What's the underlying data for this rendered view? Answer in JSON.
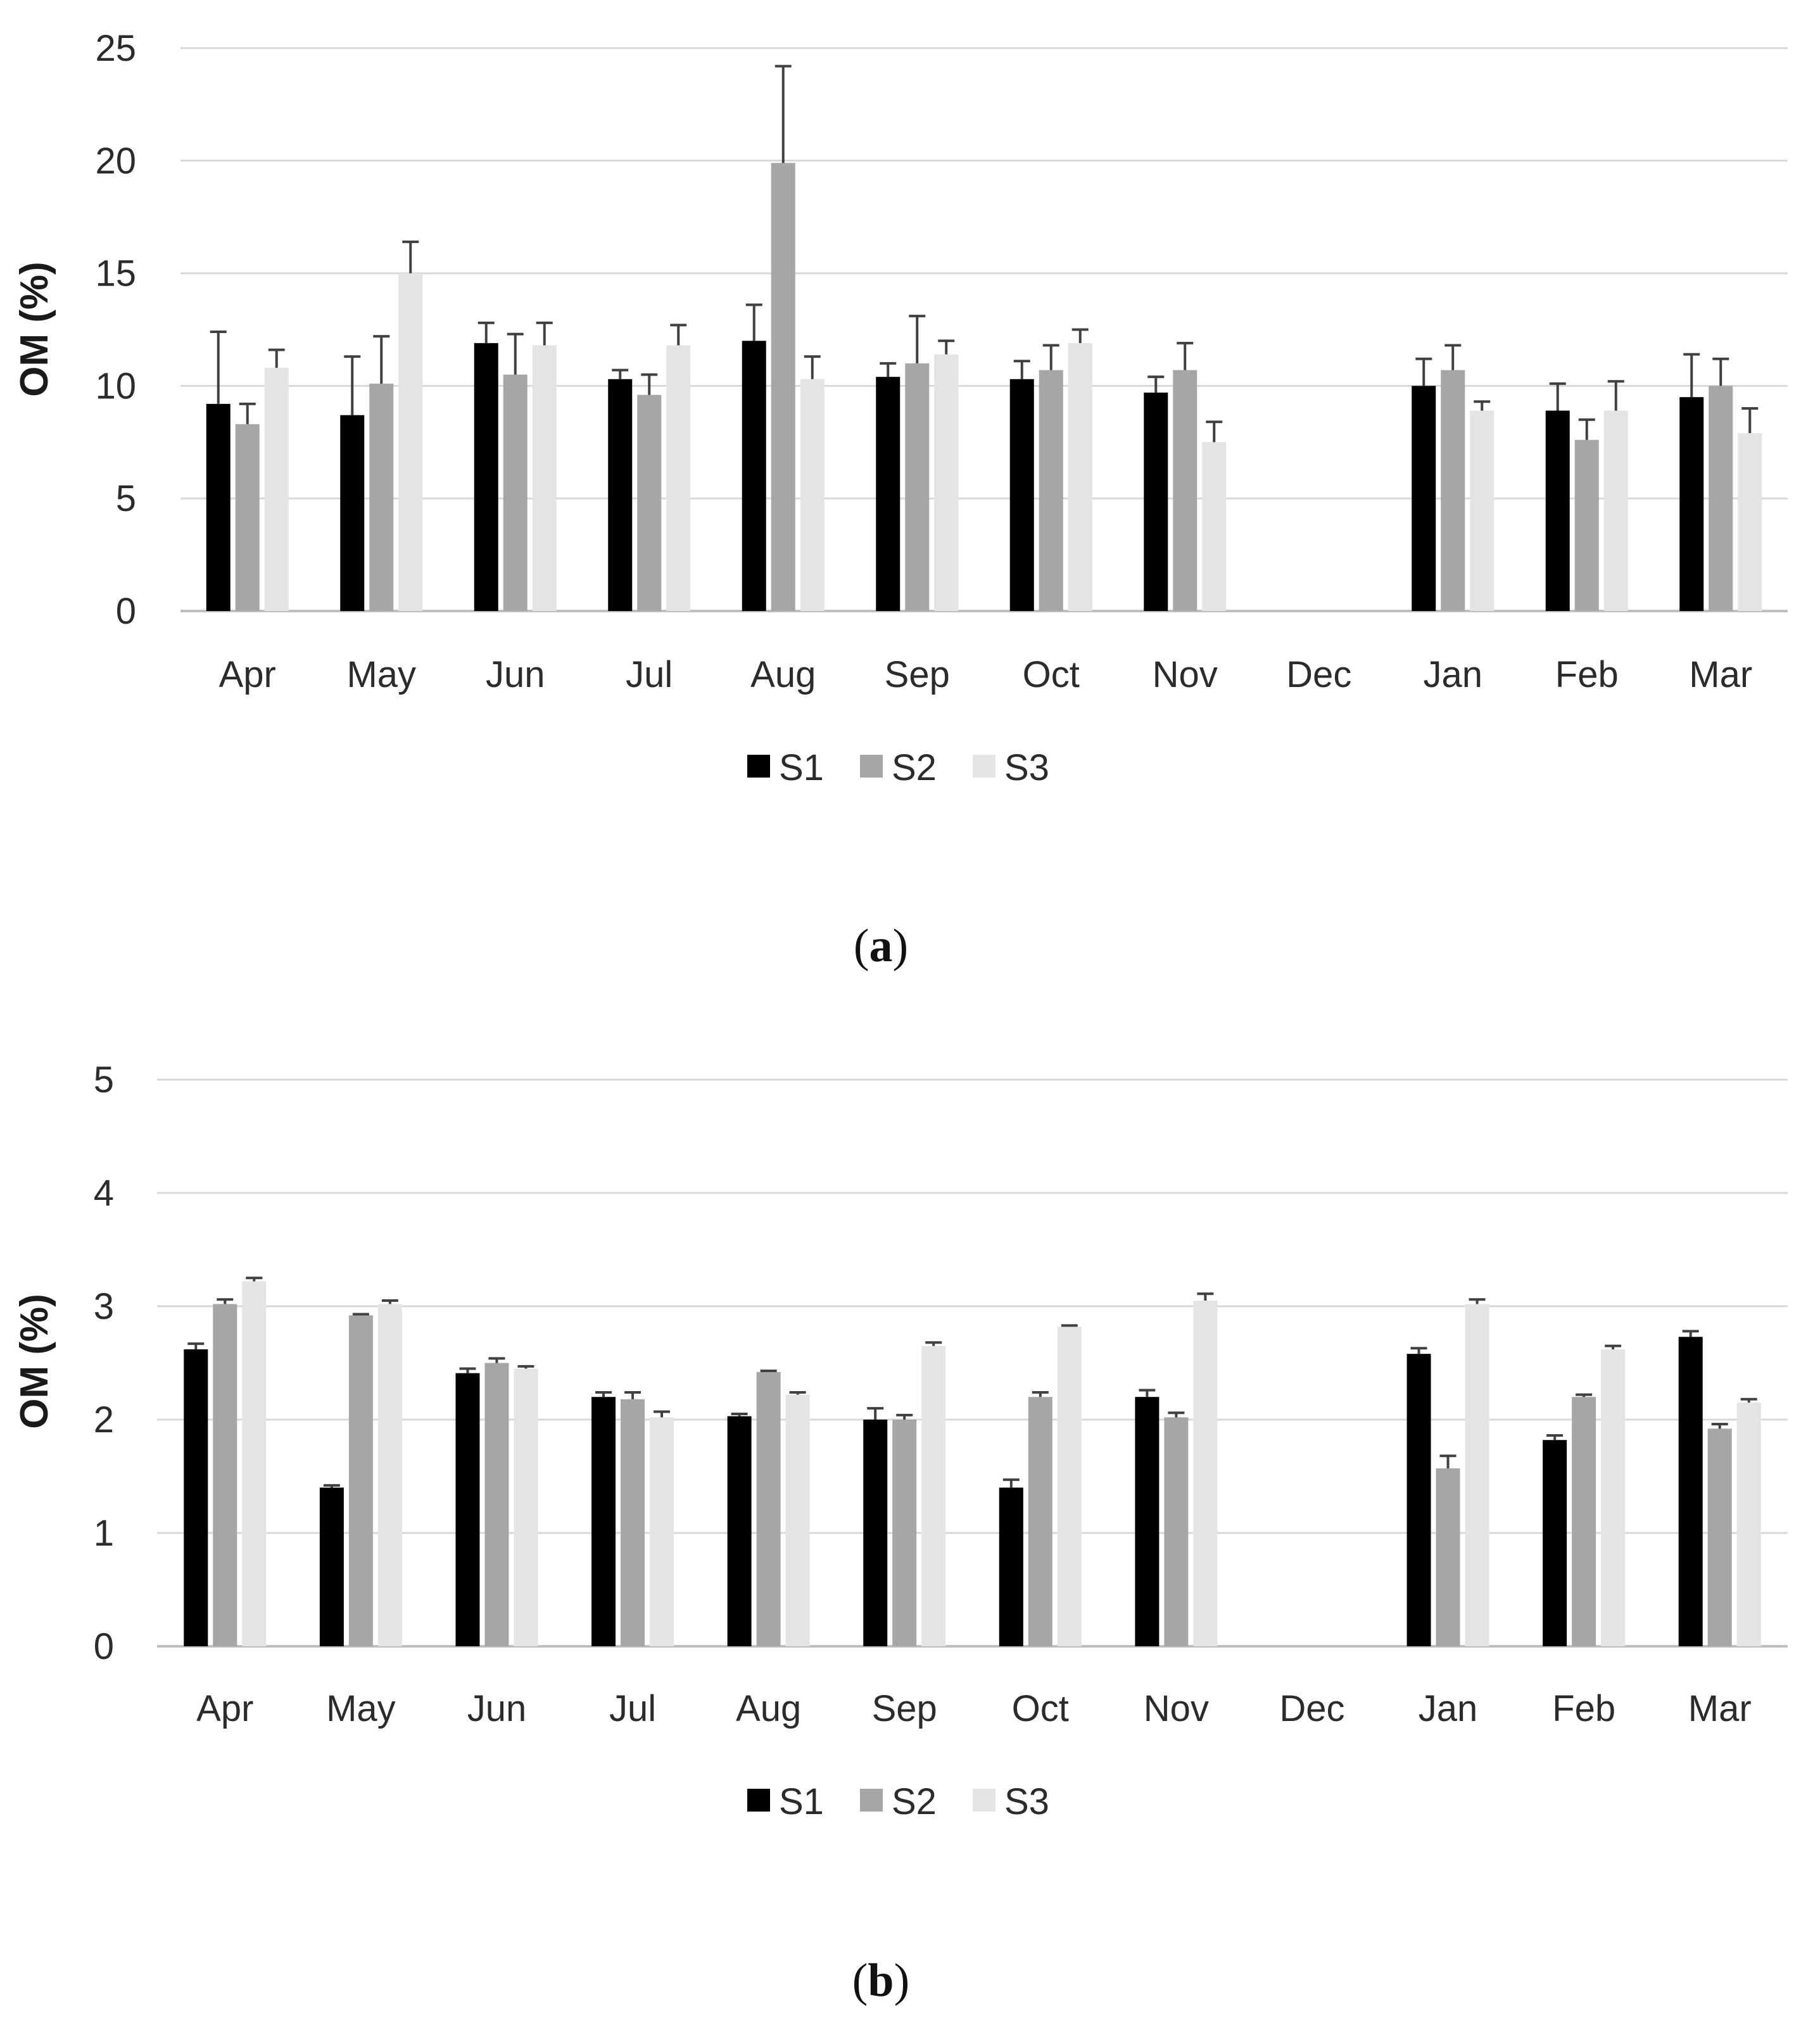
{
  "figure": {
    "captions": [
      "(a)",
      "(b)"
    ],
    "caption_parts": [
      {
        "open": "(",
        "letter": "a",
        "close": ")"
      },
      {
        "open": "(",
        "letter": "b",
        "close": ")"
      }
    ]
  },
  "colors": {
    "S1": "#000000",
    "S2": "#a6a6a6",
    "S3": "#e4e4e4",
    "grid": "#d9d9d9",
    "axis": "#bfbfbf",
    "error": "#404040"
  },
  "chart_data": [
    {
      "type": "bar",
      "panel": "a",
      "ylabel": "OM (%)",
      "xlabel": "",
      "ylim": [
        0,
        25
      ],
      "yticks": [
        0,
        5,
        10,
        15,
        20,
        25
      ],
      "grid": true,
      "legend": "bottom-center",
      "categories": [
        "Apr",
        "May",
        "Jun",
        "Jul",
        "Aug",
        "Sep",
        "Oct",
        "Nov",
        "Dec",
        "Jan",
        "Feb",
        "Mar"
      ],
      "series": [
        {
          "name": "S1",
          "values": [
            9.2,
            8.7,
            11.9,
            10.3,
            12.0,
            10.4,
            10.3,
            9.7,
            null,
            10.0,
            8.9,
            9.5
          ],
          "errors": [
            3.2,
            2.6,
            0.9,
            0.4,
            1.6,
            0.6,
            0.8,
            0.7,
            null,
            1.2,
            1.2,
            1.9
          ]
        },
        {
          "name": "S2",
          "values": [
            8.3,
            10.1,
            10.5,
            9.6,
            19.9,
            11.0,
            10.7,
            10.7,
            null,
            10.7,
            7.6,
            10.0
          ],
          "errors": [
            0.9,
            2.1,
            1.8,
            0.9,
            4.3,
            2.1,
            1.1,
            1.2,
            null,
            1.1,
            0.9,
            1.2
          ]
        },
        {
          "name": "S3",
          "values": [
            10.8,
            15.0,
            11.8,
            11.8,
            10.3,
            11.4,
            11.9,
            7.5,
            null,
            8.9,
            8.9,
            7.9
          ],
          "errors": [
            0.8,
            1.4,
            1.0,
            0.9,
            1.0,
            0.6,
            0.6,
            0.9,
            null,
            0.4,
            1.3,
            1.1
          ]
        }
      ]
    },
    {
      "type": "bar",
      "panel": "b",
      "ylabel": "OM (%)",
      "xlabel": "",
      "ylim": [
        0,
        5
      ],
      "yticks": [
        0,
        1,
        2,
        3,
        4,
        5
      ],
      "grid": true,
      "legend": "bottom-center",
      "categories": [
        "Apr",
        "May",
        "Jun",
        "Jul",
        "Aug",
        "Sep",
        "Oct",
        "Nov",
        "Dec",
        "Jan",
        "Feb",
        "Mar"
      ],
      "series": [
        {
          "name": "S1",
          "values": [
            2.62,
            1.4,
            2.41,
            2.2,
            2.03,
            2.0,
            1.4,
            2.2,
            null,
            2.58,
            1.82,
            2.73
          ],
          "errors": [
            0.05,
            0.02,
            0.04,
            0.04,
            0.02,
            0.1,
            0.07,
            0.06,
            null,
            0.05,
            0.04,
            0.05
          ]
        },
        {
          "name": "S2",
          "values": [
            3.02,
            2.92,
            2.5,
            2.18,
            2.42,
            2.0,
            2.2,
            2.02,
            null,
            1.57,
            2.2,
            1.92
          ],
          "errors": [
            0.04,
            0.01,
            0.04,
            0.06,
            0.01,
            0.04,
            0.04,
            0.04,
            null,
            0.11,
            0.02,
            0.04
          ]
        },
        {
          "name": "S3",
          "values": [
            3.22,
            3.02,
            2.45,
            2.02,
            2.22,
            2.65,
            2.82,
            3.05,
            null,
            3.02,
            2.62,
            2.15
          ],
          "errors": [
            0.03,
            0.03,
            0.02,
            0.05,
            0.02,
            0.03,
            0.01,
            0.06,
            null,
            0.04,
            0.03,
            0.03
          ]
        }
      ]
    }
  ]
}
